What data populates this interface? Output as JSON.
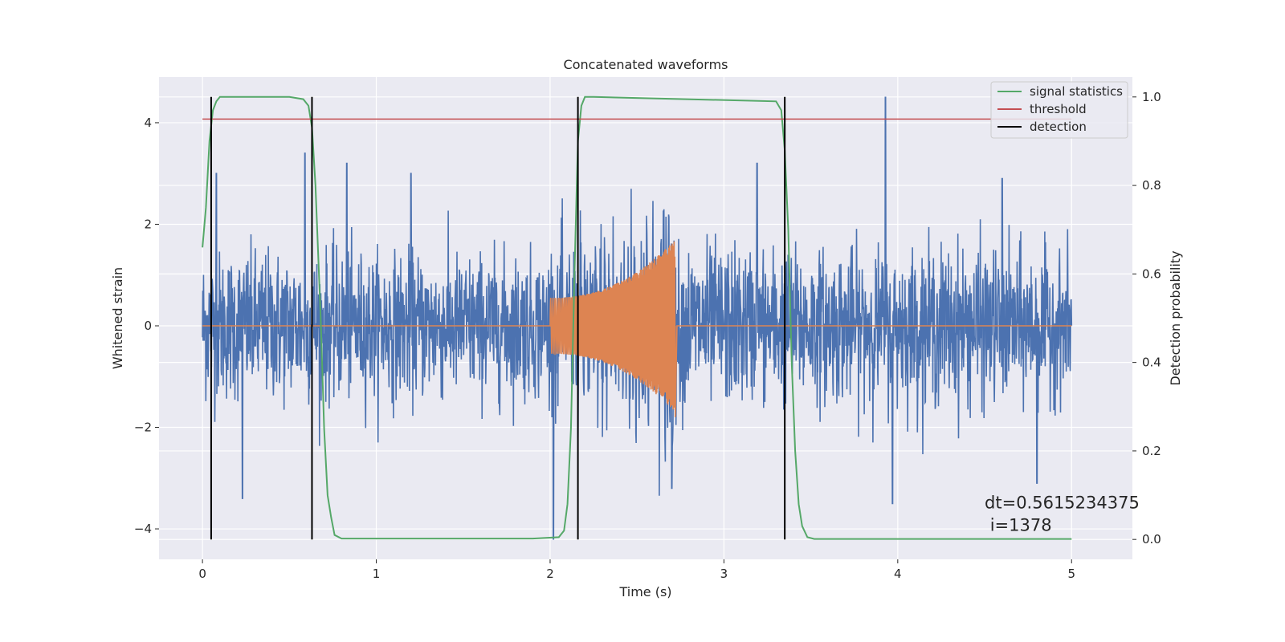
{
  "chart_data": {
    "type": "line",
    "title": "Concatenated waveforms",
    "xlabel": "Time (s)",
    "ylabel": "Whitened strain",
    "y2label": "Detection probability",
    "xlim": [
      -0.25,
      5.35
    ],
    "ylim": [
      -4.6,
      4.9
    ],
    "y2lim": [
      -0.045,
      1.045
    ],
    "grid": true,
    "legend_position": "upper right",
    "xticks": [
      0,
      1,
      2,
      3,
      4,
      5
    ],
    "xtick_labels": [
      "0",
      "1",
      "2",
      "3",
      "4",
      "5"
    ],
    "yticks": [
      -4,
      -2,
      0,
      2,
      4
    ],
    "ytick_labels": [
      "−4",
      "−2",
      "0",
      "2",
      "4"
    ],
    "y2ticks": [
      0.0,
      0.2,
      0.4,
      0.6,
      0.8,
      1.0
    ],
    "y2tick_labels": [
      "0.0",
      "0.2",
      "0.4",
      "0.6",
      "0.8",
      "1.0"
    ],
    "series": [
      {
        "role": "noise",
        "axis": "left",
        "color": "#4c72b0",
        "x_range": [
          0,
          5
        ],
        "envelope_upper": [
          [
            0,
            3.0
          ],
          [
            0.5,
            2.6
          ],
          [
            1.0,
            2.5
          ],
          [
            1.5,
            2.6
          ],
          [
            2.0,
            2.5
          ],
          [
            2.5,
            2.8
          ],
          [
            3.0,
            2.7
          ],
          [
            3.5,
            2.6
          ],
          [
            4.0,
            2.6
          ],
          [
            4.5,
            2.7
          ],
          [
            5.0,
            2.5
          ]
        ],
        "envelope_lower": [
          [
            0,
            -2.0
          ],
          [
            0.5,
            -2.4
          ],
          [
            1.0,
            -2.3
          ],
          [
            1.5,
            -2.2
          ],
          [
            2.0,
            -2.3
          ],
          [
            2.5,
            -2.8
          ],
          [
            3.0,
            -2.6
          ],
          [
            3.5,
            -2.4
          ],
          [
            4.0,
            -2.5
          ],
          [
            4.5,
            -2.6
          ],
          [
            5.0,
            -2.0
          ]
        ],
        "spikes": [
          [
            0.08,
            3.0
          ],
          [
            0.23,
            -3.4
          ],
          [
            0.59,
            3.4
          ],
          [
            0.83,
            3.2
          ],
          [
            1.2,
            3.0
          ],
          [
            2.02,
            -4.2
          ],
          [
            2.7,
            -3.2
          ],
          [
            3.19,
            3.2
          ],
          [
            3.93,
            4.5
          ],
          [
            3.97,
            -3.5
          ],
          [
            4.6,
            2.9
          ],
          [
            4.8,
            -3.1
          ]
        ]
      },
      {
        "role": "injected-signal",
        "axis": "left",
        "color": "#dd8452",
        "x_range": [
          0,
          5
        ],
        "chirp": {
          "start": 2.0,
          "end": 2.72,
          "amp_start": 0.55,
          "amp_end": 1.7,
          "max_negative": -1.8
        }
      },
      {
        "name": "signal statistics",
        "axis": "right",
        "color": "#55a868",
        "x": [
          0.0,
          0.02,
          0.04,
          0.06,
          0.08,
          0.1,
          0.12,
          0.15,
          0.2,
          0.5,
          0.58,
          0.61,
          0.63,
          0.65,
          0.68,
          0.7,
          0.72,
          0.74,
          0.76,
          0.8,
          1.0,
          1.5,
          1.9,
          2.05,
          2.08,
          2.1,
          2.12,
          2.14,
          2.16,
          2.18,
          2.2,
          2.25,
          3.3,
          3.33,
          3.35,
          3.37,
          3.39,
          3.41,
          3.43,
          3.45,
          3.48,
          3.52,
          4.0,
          5.0
        ],
        "y": [
          0.66,
          0.75,
          0.9,
          0.97,
          0.99,
          1.0,
          1.0,
          1.0,
          1.0,
          1.0,
          0.995,
          0.98,
          0.93,
          0.8,
          0.5,
          0.25,
          0.1,
          0.05,
          0.01,
          0.002,
          0.002,
          0.002,
          0.002,
          0.005,
          0.02,
          0.08,
          0.25,
          0.6,
          0.9,
          0.98,
          1.0,
          1.0,
          0.99,
          0.97,
          0.88,
          0.7,
          0.4,
          0.2,
          0.08,
          0.03,
          0.005,
          0.001,
          0.001,
          0.001
        ]
      },
      {
        "name": "threshold",
        "axis": "right",
        "color": "#c44e52",
        "x": [
          0,
          5
        ],
        "y": [
          0.95,
          0.95
        ]
      },
      {
        "name": "detection",
        "axis": "right",
        "color": "#000000",
        "vlines": [
          0.05,
          0.63,
          2.16,
          3.35
        ],
        "ymin": 0.0,
        "ymax": 1.0
      }
    ],
    "annotation": {
      "line1": "dt=0.5615234375",
      "line2": " i=1378",
      "x": 4.5,
      "y": -3.6
    }
  }
}
